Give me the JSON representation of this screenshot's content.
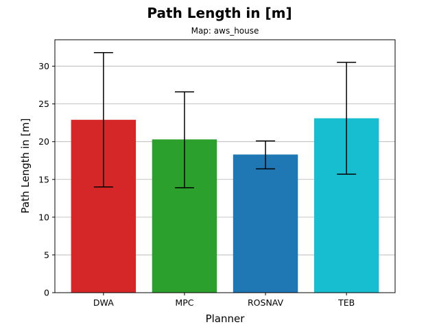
{
  "chart_data": {
    "type": "bar",
    "title": "Path Length in [m]",
    "subtitle": "Map: aws_house",
    "xlabel": "Planner",
    "ylabel": "Path Length in [m]",
    "categories": [
      "DWA",
      "MPC",
      "ROSNAV",
      "TEB"
    ],
    "values": [
      22.9,
      20.3,
      18.3,
      23.1
    ],
    "error_low": [
      14.0,
      13.9,
      16.4,
      15.7
    ],
    "error_high": [
      31.8,
      26.6,
      20.1,
      30.5
    ],
    "colors": [
      "#d62728",
      "#2ca02c",
      "#1f77b4",
      "#17becf"
    ],
    "ylim": [
      0,
      33.5
    ],
    "yticks": [
      0,
      5,
      10,
      15,
      20,
      25,
      30
    ],
    "grid": "horizontal"
  }
}
